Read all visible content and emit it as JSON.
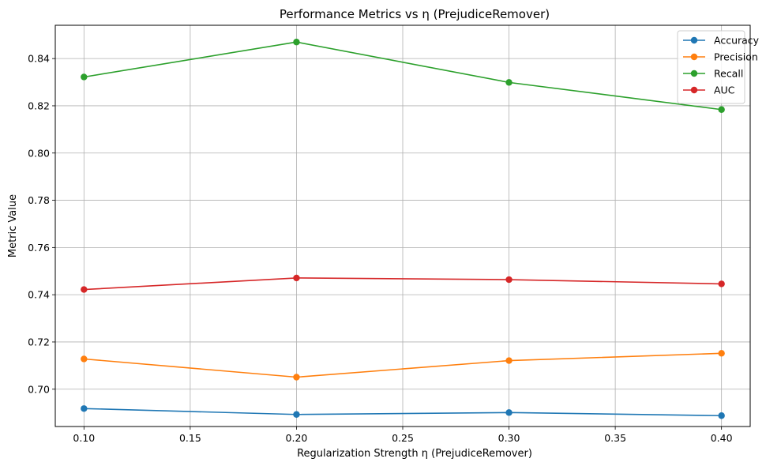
{
  "chart_data": {
    "type": "line",
    "title": "Performance Metrics vs η (PrejudiceRemover)",
    "xlabel": "Regularization Strength η (PrejudiceRemover)",
    "ylabel": "Metric Value",
    "x": [
      0.1,
      0.2,
      0.3,
      0.4
    ],
    "xlim": [
      0.0865,
      0.4135
    ],
    "ylim": [
      0.6842,
      0.8541
    ],
    "xticks": [
      0.1,
      0.15,
      0.2,
      0.25,
      0.3,
      0.35,
      0.4
    ],
    "xtick_labels": [
      "0.10",
      "0.15",
      "0.20",
      "0.25",
      "0.30",
      "0.35",
      "0.40"
    ],
    "yticks": [
      0.7,
      0.72,
      0.74,
      0.76,
      0.78,
      0.8,
      0.82,
      0.84
    ],
    "ytick_labels": [
      "0.70",
      "0.72",
      "0.74",
      "0.76",
      "0.78",
      "0.80",
      "0.82",
      "0.84"
    ],
    "grid": true,
    "legend_position": "top-right",
    "series": [
      {
        "name": "Accuracy",
        "color": "#1f77b4",
        "values": [
          0.6918,
          0.6893,
          0.6901,
          0.6888
        ]
      },
      {
        "name": "Precision",
        "color": "#ff7f0e",
        "values": [
          0.7128,
          0.7051,
          0.7121,
          0.7152
        ]
      },
      {
        "name": "Recall",
        "color": "#2ca02c",
        "values": [
          0.8322,
          0.847,
          0.8299,
          0.8184
        ]
      },
      {
        "name": "AUC",
        "color": "#d62728",
        "values": [
          0.7422,
          0.7471,
          0.7464,
          0.7446
        ]
      }
    ]
  }
}
